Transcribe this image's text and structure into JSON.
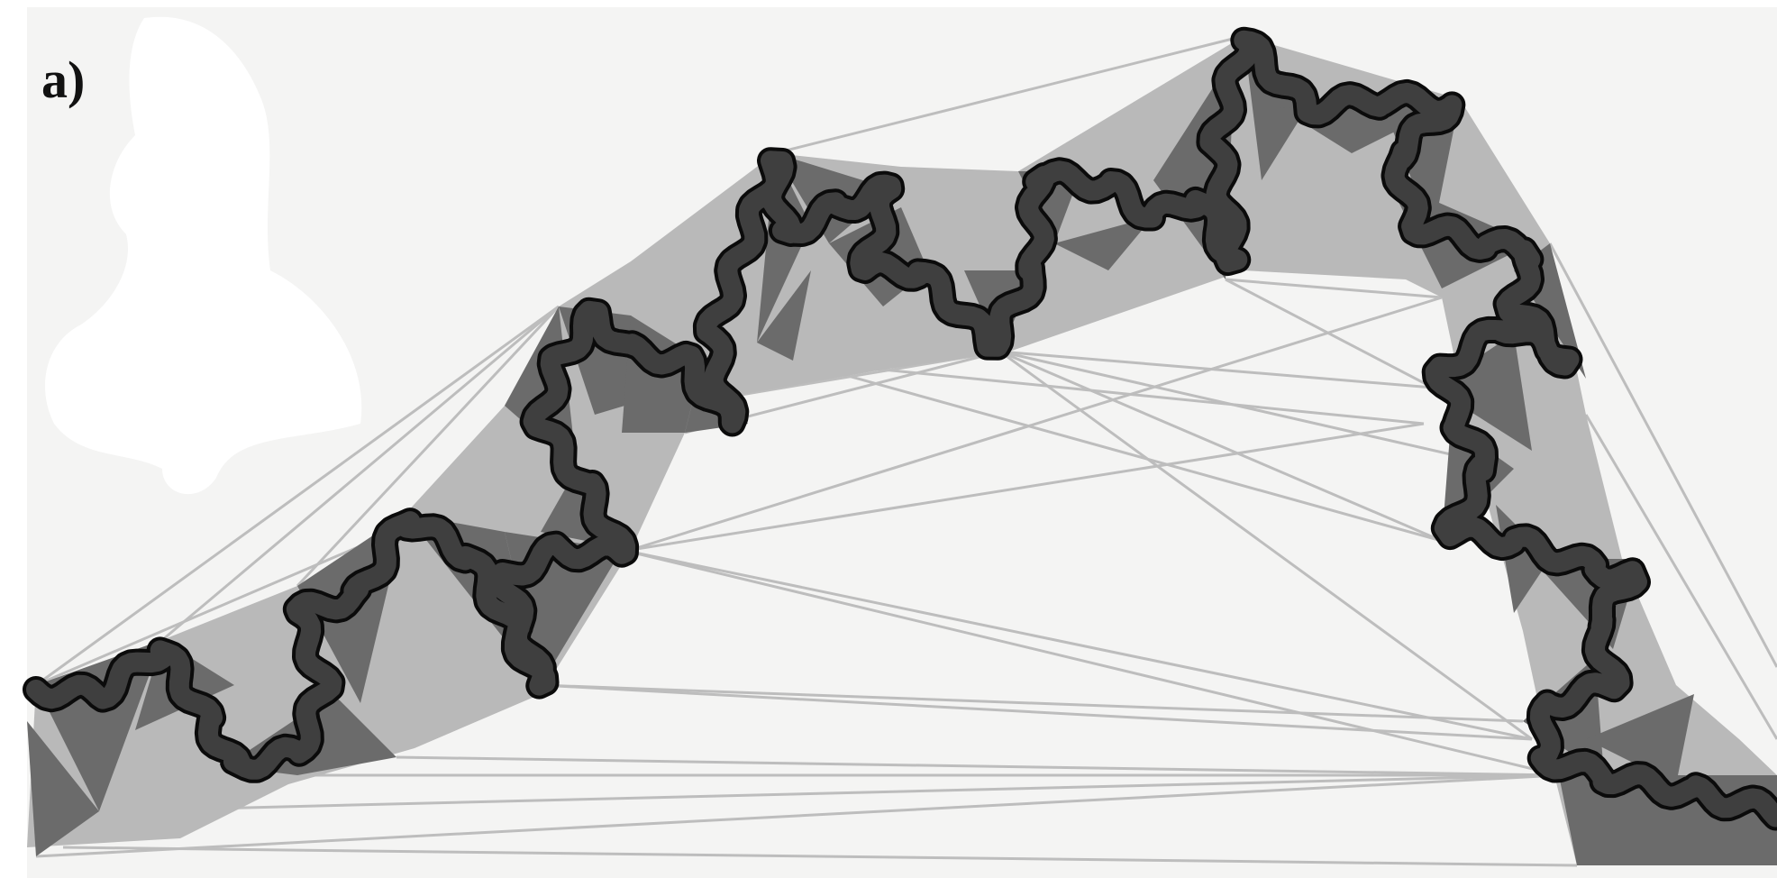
{
  "figure": {
    "panel_label": "a)",
    "colors": {
      "background": "#f4f4f3",
      "hull_fill": "#b9b9b9",
      "triangle_fill": "#6b6b6b",
      "curve_fill": "#3a3a3a",
      "curve_outline": "#0b0b0b",
      "edges": "#bdbdbd"
    }
  }
}
